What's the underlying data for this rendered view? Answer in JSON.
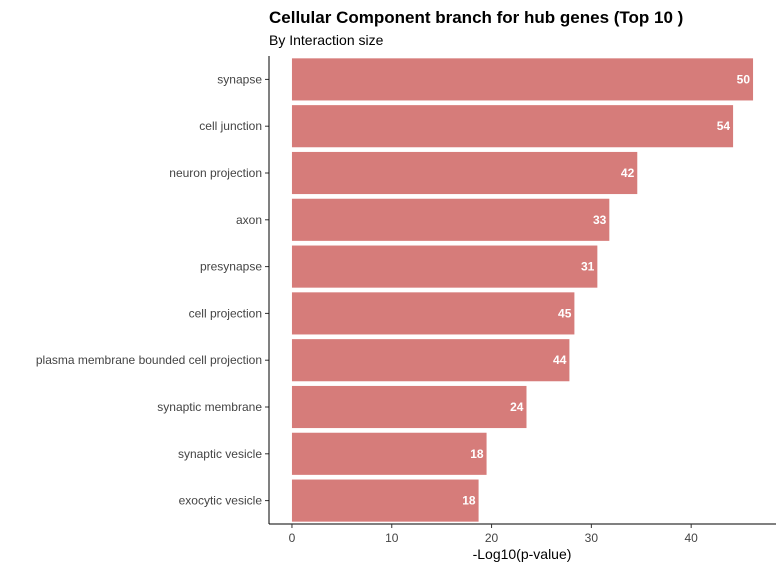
{
  "chart_data": {
    "type": "bar",
    "orientation": "horizontal",
    "title": "Cellular Component branch for hub genes (Top 10 )",
    "subtitle": "By Interaction size",
    "xlabel": "-Log10(p-value)",
    "ylabel": "",
    "xlim": [
      -2.3,
      48.5
    ],
    "xticks": [
      0,
      10,
      20,
      30,
      40
    ],
    "grid": false,
    "legend": "none",
    "bar_color": "#d67c7a",
    "categories": [
      "synapse",
      "cell junction",
      "neuron projection",
      "axon",
      "presynapse",
      "cell projection",
      "plasma membrane bounded cell projection",
      "synaptic membrane",
      "synaptic vesicle",
      "exocytic vesicle"
    ],
    "values": [
      46.2,
      44.2,
      34.6,
      31.8,
      30.6,
      28.3,
      27.8,
      23.5,
      19.5,
      18.7
    ],
    "bar_labels": [
      "50",
      "54",
      "42",
      "33",
      "31",
      "45",
      "44",
      "24",
      "18",
      "18"
    ]
  }
}
